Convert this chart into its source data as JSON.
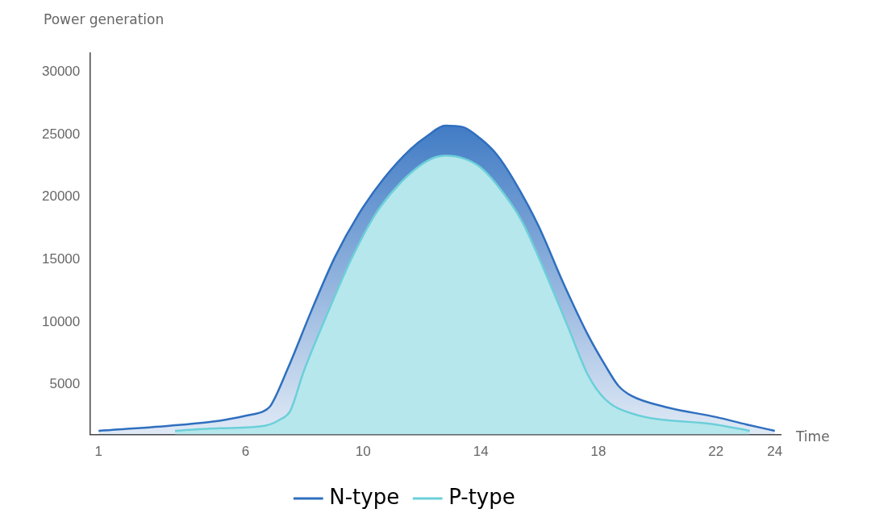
{
  "chart_data": {
    "type": "area",
    "xlabel": "Time",
    "ylabel": "Power generation",
    "xlim": [
      0.7,
      24.2
    ],
    "xticks": [
      1,
      6,
      10,
      14,
      18,
      22,
      24
    ],
    "ylim": [
      1000,
      31500
    ],
    "yticks": [
      5000,
      10000,
      15000,
      20000,
      25000,
      30000
    ],
    "grid": false,
    "legend": "bottom",
    "marker": "none",
    "series": [
      {
        "name": "N-type",
        "color": "#2f6fbf",
        "x": [
          1,
          3.4,
          5.11,
          6,
          6.64,
          6.85,
          7.44,
          8.24,
          9.04,
          9.84,
          10.71,
          11.6,
          12.19,
          12.79,
          13.38,
          13.97,
          14.54,
          15.11,
          15.96,
          16.81,
          17.66,
          18.24,
          18.68,
          19.12,
          20.29,
          22,
          23.05,
          24
        ],
        "values": [
          1300,
          1700,
          2100,
          2500,
          2900,
          3300,
          6300,
          10900,
          15200,
          18600,
          21500,
          23800,
          24900,
          25700,
          25600,
          24700,
          23400,
          21400,
          17700,
          13100,
          8900,
          6500,
          4900,
          4100,
          3200,
          2400,
          1800,
          1300
        ]
      },
      {
        "name": "P-type",
        "color": "#6ccfd9",
        "x": [
          3.6,
          5.11,
          6.64,
          7.17,
          7.52,
          7.97,
          8.77,
          9.57,
          10.41,
          11.3,
          12.19,
          12.79,
          13.38,
          13.97,
          14.54,
          15.39,
          16.24,
          16.95,
          17.66,
          18.24,
          19.12,
          22,
          23.15
        ],
        "values": [
          1300,
          1500,
          1700,
          2200,
          2900,
          6000,
          10600,
          14900,
          18600,
          21200,
          22900,
          23300,
          23100,
          22400,
          21000,
          18100,
          13700,
          9700,
          5700,
          3800,
          2700,
          1800,
          1300
        ]
      }
    ]
  }
}
